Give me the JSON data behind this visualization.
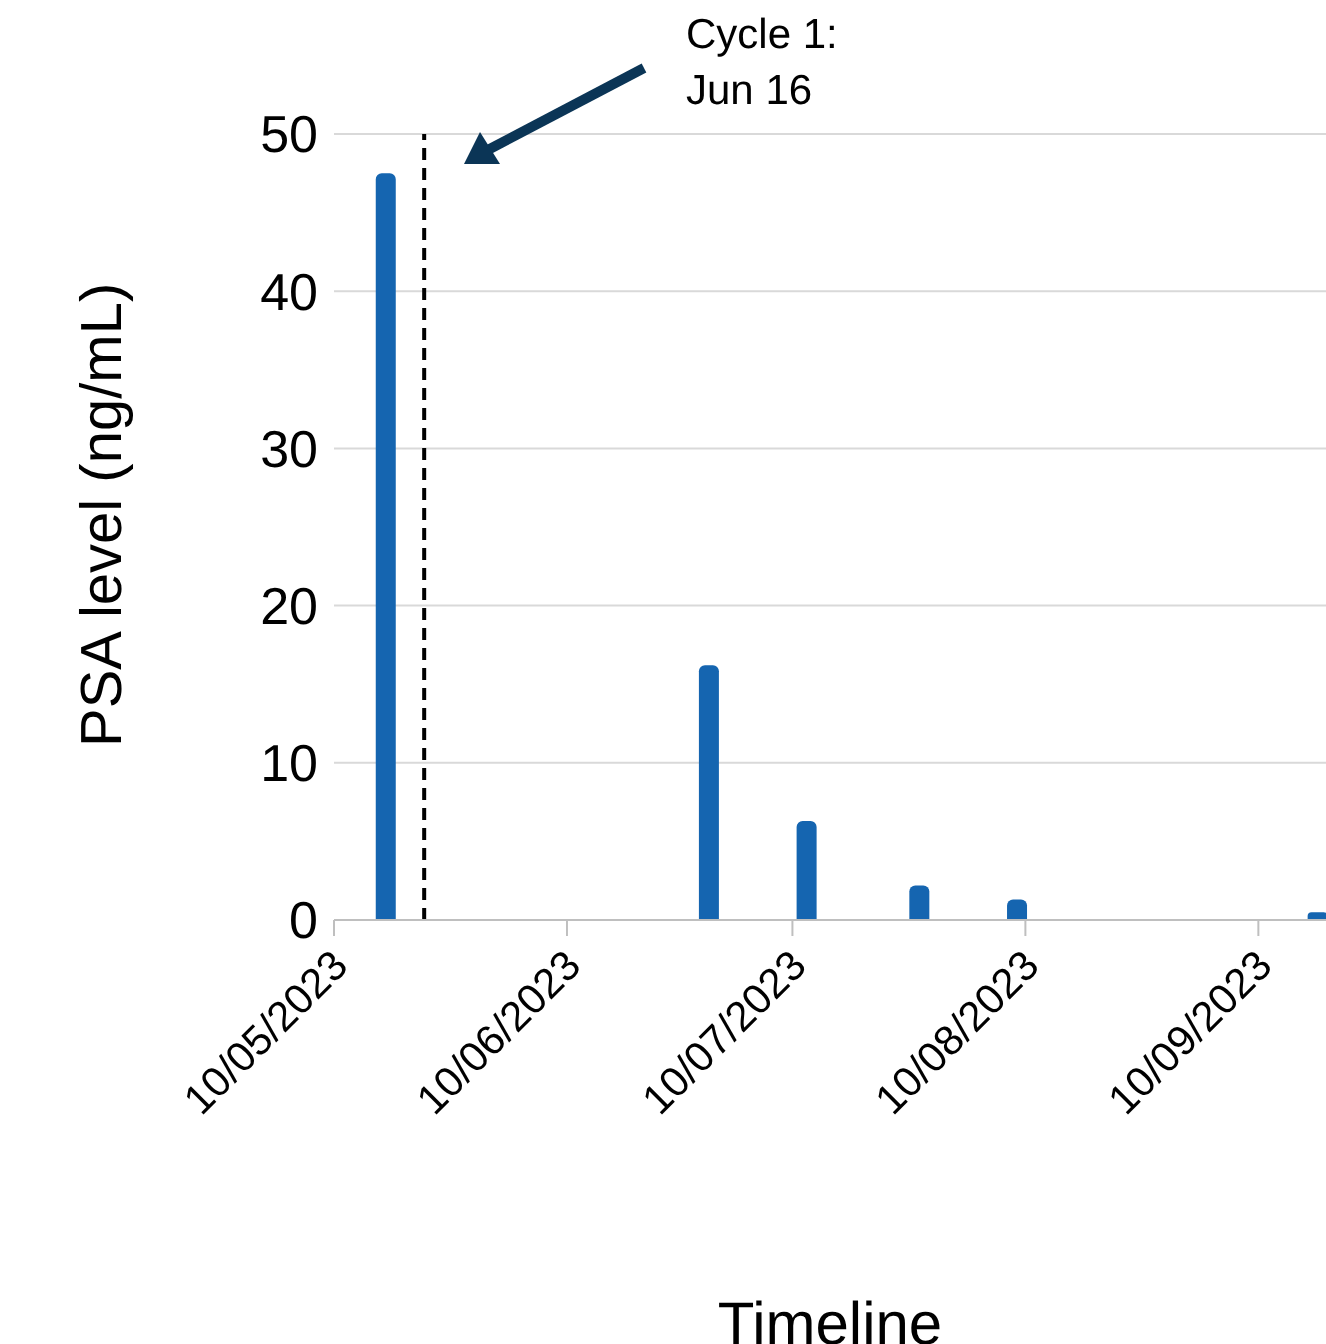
{
  "chart_data": {
    "type": "bar",
    "xlabel": "Timeline",
    "ylabel": "PSA level (ng/mL)",
    "x": [
      "2023-05-17",
      "2023-06-29",
      "2023-07-12",
      "2023-07-27",
      "2023-08-09",
      "2023-09-18"
    ],
    "values": [
      47.5,
      16.2,
      6.3,
      2.2,
      1.3,
      0.5
    ],
    "color": "#1565b0",
    "xlim": [
      "2023-05-10",
      "2023-09-19"
    ],
    "xticks": [
      {
        "value": "2023-05-10",
        "label": "10/05/2023"
      },
      {
        "value": "2023-06-10",
        "label": "10/06/2023"
      },
      {
        "value": "2023-07-10",
        "label": "10/07/2023"
      },
      {
        "value": "2023-08-10",
        "label": "10/08/2023"
      },
      {
        "value": "2023-09-10",
        "label": "10/09/2023"
      }
    ],
    "ylim": [
      0,
      50
    ],
    "yticks": [
      0,
      10,
      20,
      30,
      40,
      50
    ],
    "grid": "y",
    "legend": false,
    "ref_lines": [
      {
        "axis": "x",
        "value": "2023-05-22",
        "line_style": "dashed",
        "color": "#000000"
      }
    ],
    "annotations": [
      "Cycle 1: Jun 16"
    ]
  }
}
